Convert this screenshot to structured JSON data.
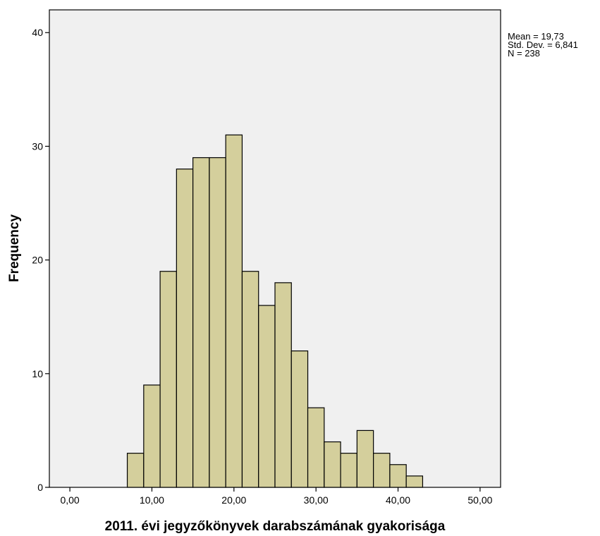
{
  "chart_data": {
    "type": "bar",
    "title": "",
    "xlabel": "2011. évi jegyzőkönyvek darabszámának gyakorisága",
    "ylabel": "Frequency",
    "xlim": [
      -2.5,
      52.5
    ],
    "ylim": [
      0,
      42
    ],
    "x_ticks": [
      0,
      10,
      20,
      30,
      40,
      50
    ],
    "x_tick_labels": [
      "0,00",
      "10,00",
      "20,00",
      "30,00",
      "40,00",
      "50,00"
    ],
    "y_ticks": [
      0,
      10,
      20,
      30,
      40
    ],
    "y_tick_labels": [
      "0",
      "10",
      "20",
      "30",
      "40"
    ],
    "bin_width": 2,
    "bins": [
      {
        "start": 7,
        "end": 9,
        "count": 3
      },
      {
        "start": 9,
        "end": 11,
        "count": 9
      },
      {
        "start": 11,
        "end": 13,
        "count": 19
      },
      {
        "start": 13,
        "end": 15,
        "count": 28
      },
      {
        "start": 15,
        "end": 17,
        "count": 29
      },
      {
        "start": 17,
        "end": 19,
        "count": 29
      },
      {
        "start": 19,
        "end": 21,
        "count": 31
      },
      {
        "start": 21,
        "end": 23,
        "count": 19
      },
      {
        "start": 23,
        "end": 25,
        "count": 16
      },
      {
        "start": 25,
        "end": 27,
        "count": 18
      },
      {
        "start": 27,
        "end": 29,
        "count": 12
      },
      {
        "start": 29,
        "end": 31,
        "count": 7
      },
      {
        "start": 31,
        "end": 33,
        "count": 4
      },
      {
        "start": 33,
        "end": 35,
        "count": 3
      },
      {
        "start": 35,
        "end": 37,
        "count": 5
      },
      {
        "start": 37,
        "end": 39,
        "count": 3
      },
      {
        "start": 39,
        "end": 41,
        "count": 2
      },
      {
        "start": 41,
        "end": 43,
        "count": 1
      }
    ],
    "grid": false,
    "colors": {
      "bar_fill": "#d4cf9c",
      "bar_stroke": "#000000",
      "plot_bg": "#f0f0f0"
    },
    "stats": {
      "mean": "Mean = 19,73",
      "std_dev": "Std. Dev. = 6,841",
      "n": "N = 238"
    }
  }
}
